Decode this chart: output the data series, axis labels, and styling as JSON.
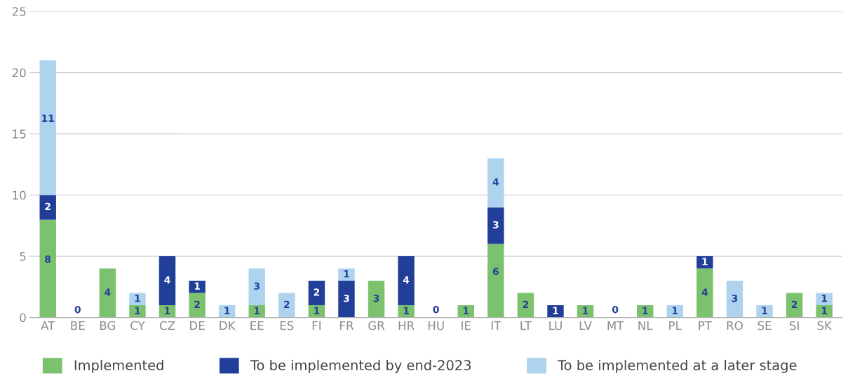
{
  "chart_data": {
    "type": "bar",
    "stacked": true,
    "categories": [
      "AT",
      "BE",
      "BG",
      "CY",
      "CZ",
      "DE",
      "DK",
      "EE",
      "ES",
      "FI",
      "FR",
      "GR",
      "HR",
      "HU",
      "IE",
      "IT",
      "LT",
      "LU",
      "LV",
      "MT",
      "NL",
      "PL",
      "PT",
      "RO",
      "SE",
      "SI",
      "SK"
    ],
    "series": [
      {
        "name": "Implemented",
        "color": "#7cc16e",
        "values": [
          8,
          0,
          4,
          1,
          1,
          2,
          0,
          1,
          0,
          1,
          0,
          3,
          1,
          0,
          1,
          6,
          2,
          0,
          1,
          0,
          1,
          0,
          4,
          0,
          0,
          2,
          1
        ],
        "value_labels": [
          "8",
          null,
          "4",
          "1",
          "1",
          "2",
          null,
          "1",
          null,
          "1",
          null,
          "3",
          "1",
          null,
          "1",
          "6",
          "2",
          null,
          "1",
          null,
          "1",
          null,
          "4",
          null,
          null,
          "2",
          "1"
        ]
      },
      {
        "name": "To be implemented by end-2023",
        "color": "#213f99",
        "values": [
          2,
          0,
          0,
          0,
          4,
          1,
          0,
          0,
          0,
          2,
          3,
          0,
          4,
          0,
          0,
          3,
          0,
          1,
          0,
          0,
          0,
          0,
          1,
          0,
          0,
          0,
          0
        ],
        "value_labels": [
          "2",
          "0",
          null,
          null,
          "4",
          "1",
          null,
          null,
          null,
          "2",
          "3",
          null,
          "4",
          "0",
          null,
          "3",
          null,
          "1",
          null,
          "0",
          null,
          null,
          "1",
          null,
          null,
          null,
          null
        ]
      },
      {
        "name": "To be implemented at a later stage",
        "color": "#aed3ef",
        "values": [
          11,
          0,
          0,
          1,
          0,
          0,
          1,
          3,
          2,
          0,
          1,
          0,
          0,
          0,
          0,
          4,
          0,
          0,
          0,
          0,
          0,
          1,
          0,
          3,
          1,
          0,
          1
        ],
        "value_labels": [
          "11",
          null,
          null,
          "1",
          null,
          null,
          "1",
          "3",
          "2",
          null,
          "1",
          null,
          null,
          null,
          null,
          "4",
          null,
          null,
          null,
          null,
          null,
          "1",
          null,
          "3",
          "1",
          null,
          "1"
        ]
      }
    ],
    "ylim": [
      0,
      25
    ],
    "yticks": [
      0,
      5,
      10,
      15,
      20,
      25
    ],
    "grid": "y",
    "legend": "bottom"
  }
}
